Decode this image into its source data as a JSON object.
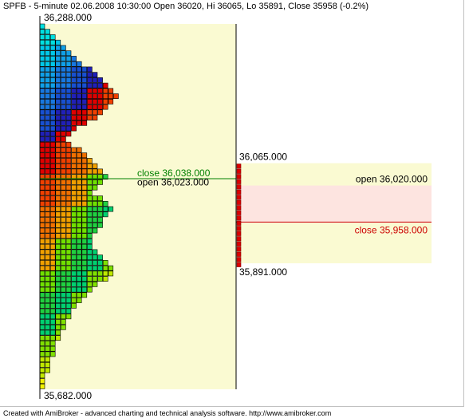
{
  "title": "SPFB - 5-minute 02.06.2008 10:30:00 Open 36020, Hi 36065, Lo 35891, Close 35958 (-0.2%)",
  "footer": "Created with AmiBroker - advanced charting and technical analysis software. http://www.amibroker.com",
  "chart_data": {
    "type": "bar",
    "profile": {
      "high_label": "36,288.000",
      "low_label": "35,682.000",
      "high": 36288,
      "low": 35682,
      "close_label": "close  36,038.000",
      "close": 36038,
      "open_label": "open  36,023.000",
      "open": 36023,
      "tpo_counts": [
        1,
        2,
        3,
        4,
        5,
        6,
        7,
        8,
        10,
        11,
        12,
        13,
        14,
        15,
        14,
        13,
        12,
        11,
        9,
        7,
        6,
        5,
        6,
        8,
        9,
        10,
        11,
        12,
        13,
        12,
        11,
        10,
        12,
        13,
        14,
        13,
        12,
        12,
        11,
        10,
        10,
        10,
        11,
        12,
        13,
        14,
        14,
        13,
        11,
        10,
        9,
        8,
        7,
        6,
        6,
        5,
        5,
        4,
        4,
        3,
        3,
        3,
        2,
        2,
        2,
        1,
        1,
        1
      ]
    },
    "candle": {
      "hi_label": "36,065.000",
      "lo_label": "35,891.000",
      "open_label": "open  36,020.000",
      "close_label": "close  35,958.000",
      "hi": 36065,
      "lo": 35891,
      "open": 36020,
      "close": 35958
    },
    "colors": {
      "value_area_bg": "#fafad2",
      "candle_body_bg": "#fde4e0",
      "close_profile_color": "#008000",
      "close_candle_color": "#cc0000",
      "bar_color": "#dd0000"
    }
  }
}
